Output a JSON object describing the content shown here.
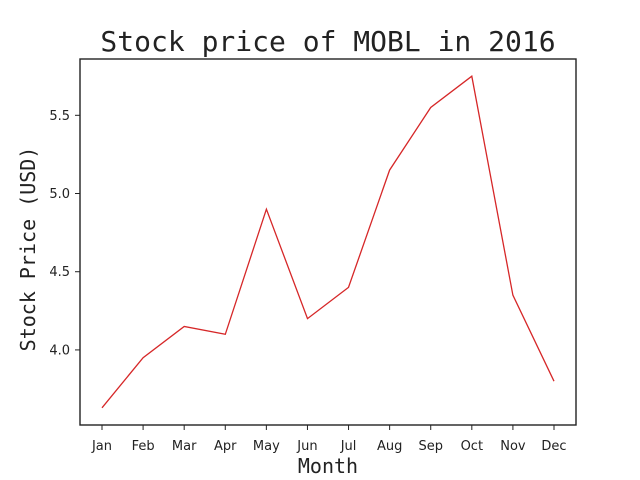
{
  "chart_data": {
    "type": "line",
    "title": "Stock price of MOBL in 2016",
    "xlabel": "Month",
    "ylabel": "Stock Price (USD)",
    "categories": [
      "Jan",
      "Feb",
      "Mar",
      "Apr",
      "May",
      "Jun",
      "Jul",
      "Aug",
      "Sep",
      "Oct",
      "Nov",
      "Dec"
    ],
    "series": [
      {
        "values": [
          3.63,
          3.95,
          4.15,
          4.1,
          4.9,
          4.2,
          4.4,
          5.15,
          5.55,
          5.75,
          4.35,
          3.8
        ],
        "color": "#d62728"
      }
    ],
    "yticks": [
      "4.0",
      "4.5",
      "5.0",
      "5.5"
    ],
    "ylim": [
      3.52,
      5.86
    ],
    "grid": false,
    "legend": "none"
  }
}
